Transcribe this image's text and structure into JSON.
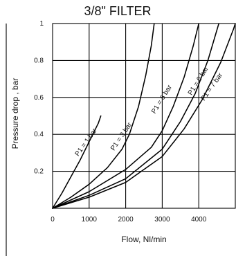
{
  "chart_data": {
    "type": "line",
    "title": "3/8\" FILTER",
    "xlabel": "Flow, Nl/min",
    "ylabel": "Pressure drop , bar",
    "xlim": [
      0,
      5000
    ],
    "ylim": [
      0,
      1
    ],
    "xticks": [
      "0",
      "1000",
      "2000",
      "3000",
      "4000"
    ],
    "yticks": [
      "0.2",
      "0.4",
      "0.6",
      "0.8",
      "1"
    ],
    "grid": true,
    "series": [
      {
        "name": "P1 = 1 bar",
        "points": [
          [
            0,
            0
          ],
          [
            250,
            0.08
          ],
          [
            500,
            0.17
          ],
          [
            750,
            0.26
          ],
          [
            1000,
            0.36
          ],
          [
            1250,
            0.46
          ],
          [
            1320,
            0.5
          ]
        ]
      },
      {
        "name": "P1 = 3 bar",
        "points": [
          [
            0,
            0
          ],
          [
            500,
            0.06
          ],
          [
            1000,
            0.13
          ],
          [
            1500,
            0.22
          ],
          [
            1900,
            0.32
          ],
          [
            2100,
            0.4
          ],
          [
            2350,
            0.55
          ],
          [
            2550,
            0.72
          ],
          [
            2700,
            0.88
          ],
          [
            2780,
            1.0
          ]
        ]
      },
      {
        "name": "P1 = 5 bar",
        "points": [
          [
            0,
            0
          ],
          [
            1000,
            0.09
          ],
          [
            2000,
            0.21
          ],
          [
            2700,
            0.33
          ],
          [
            3000,
            0.42
          ],
          [
            3300,
            0.55
          ],
          [
            3600,
            0.71
          ],
          [
            3850,
            0.88
          ],
          [
            4000,
            1.0
          ]
        ]
      },
      {
        "name": "P1 = 6 bar",
        "points": [
          [
            0,
            0
          ],
          [
            1000,
            0.07
          ],
          [
            2000,
            0.16
          ],
          [
            3000,
            0.32
          ],
          [
            3500,
            0.47
          ],
          [
            3900,
            0.62
          ],
          [
            4250,
            0.8
          ],
          [
            4550,
            1.0
          ]
        ]
      },
      {
        "name": "P1 = 7 bar",
        "points": [
          [
            0,
            0
          ],
          [
            1000,
            0.06
          ],
          [
            2000,
            0.14
          ],
          [
            3000,
            0.28
          ],
          [
            3600,
            0.43
          ],
          [
            4100,
            0.59
          ],
          [
            4600,
            0.79
          ],
          [
            4950,
            0.97
          ],
          [
            5000,
            1.0
          ]
        ]
      }
    ]
  }
}
